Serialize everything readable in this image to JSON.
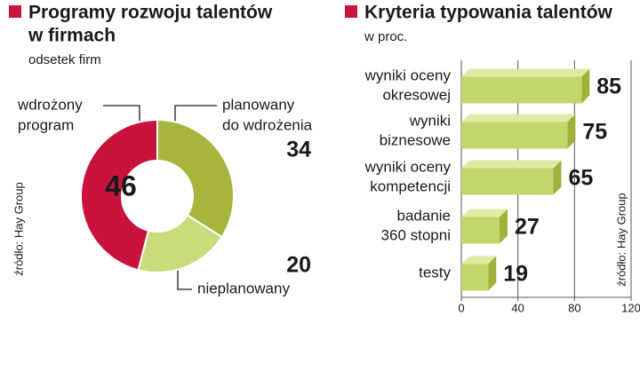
{
  "chart_data": [
    {
      "type": "donut",
      "title": [
        "Programy rozwoju talentów",
        "w firmach"
      ],
      "subtitle": "odsetek firm",
      "categories": [
        [
          "wdrożony",
          "program"
        ],
        [
          "planowany",
          "do wdrożenia"
        ],
        [
          "nieplanowany"
        ]
      ],
      "values": [
        46,
        34,
        20
      ],
      "colors": [
        "#c8143c",
        "#a7b53e",
        "#c9dc7c"
      ],
      "source": "źródło: Hay Group"
    },
    {
      "type": "hbar3d",
      "title": [
        "Kryteria typowania talentów"
      ],
      "subtitle": "w proc.",
      "categories": [
        [
          "wyniki oceny",
          "okresowej"
        ],
        [
          "wyniki",
          "biznesowe"
        ],
        [
          "wyniki oceny",
          "kompetencji"
        ],
        [
          "badanie",
          "360 stopni"
        ],
        [
          "testy"
        ]
      ],
      "values": [
        85,
        75,
        65,
        27,
        19
      ],
      "color": "#c3d66b",
      "xlim": [
        0,
        120
      ],
      "xticks": [
        0,
        40,
        80,
        120
      ],
      "grid": true,
      "source": "źródło: Hay Group"
    }
  ]
}
